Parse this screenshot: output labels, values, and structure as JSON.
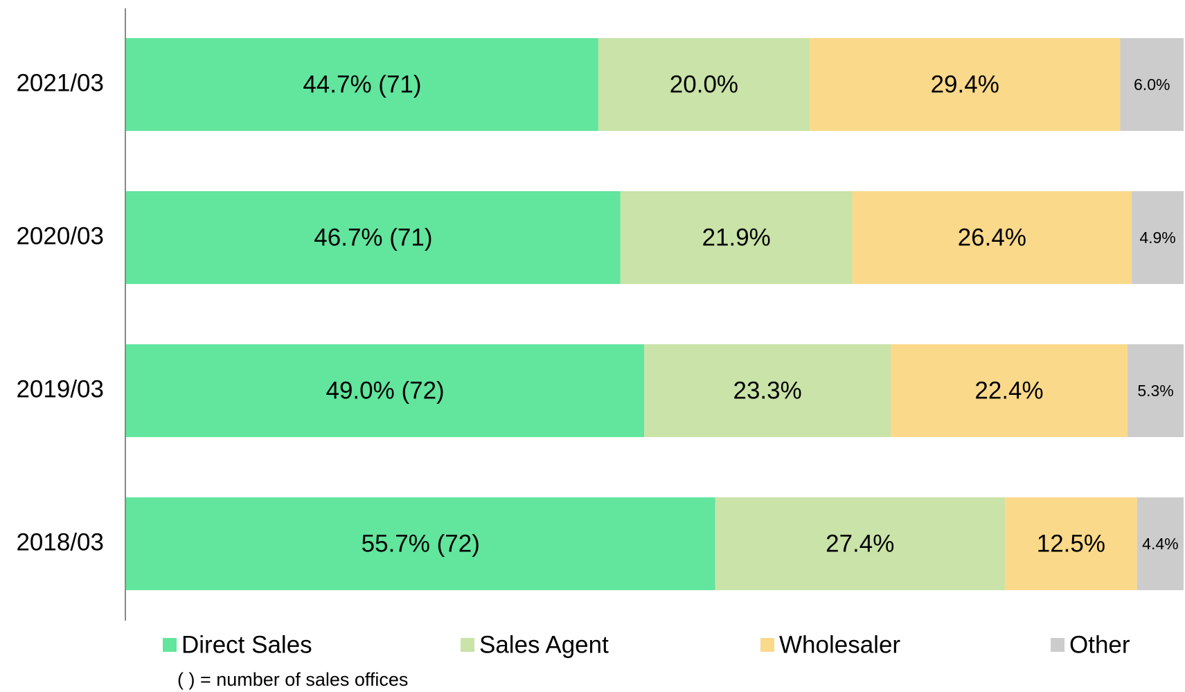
{
  "chart_data": {
    "type": "stacked_barh",
    "categories": [
      "2021/03",
      "2020/03",
      "2019/03",
      "2018/03"
    ],
    "series": [
      {
        "name": "Direct Sales",
        "color": "#62e59d",
        "values": [
          44.7,
          46.7,
          49.0,
          55.7
        ],
        "value_labels": [
          "44.7%  (71)",
          "46.7%  (71)",
          "49.0%  (72)",
          "55.7%  (72)"
        ]
      },
      {
        "name": "Sales Agent",
        "color": "#c9e3a8",
        "values": [
          20.0,
          21.9,
          23.3,
          27.4
        ],
        "value_labels": [
          "20.0%",
          "21.9%",
          "23.3%",
          "27.4%"
        ]
      },
      {
        "name": "Wholesaler",
        "color": "#fad98a",
        "values": [
          29.4,
          26.4,
          22.4,
          12.5
        ],
        "value_labels": [
          "29.4%",
          "26.4%",
          "22.4%",
          "12.5%"
        ]
      },
      {
        "name": "Other",
        "color": "#cccccc",
        "values": [
          6.0,
          4.9,
          5.3,
          4.4
        ],
        "value_labels": [
          "6.0%",
          "4.9%",
          "5.3%",
          "4.4%"
        ]
      }
    ],
    "footnote": "( ) = number of sales offices",
    "legend": "bottom"
  }
}
